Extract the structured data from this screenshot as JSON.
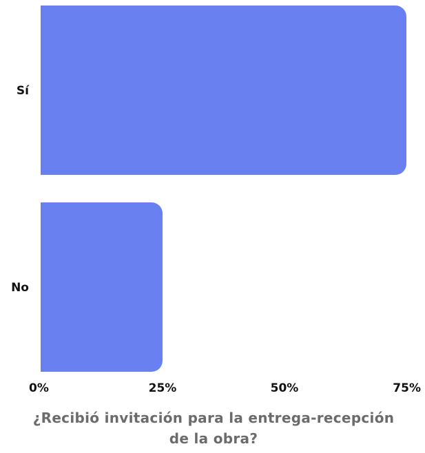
{
  "chart_data": {
    "type": "bar",
    "orientation": "horizontal",
    "categories": [
      "Sí",
      "No"
    ],
    "values": [
      75,
      25
    ],
    "xlim": [
      0,
      75
    ],
    "xticks": [
      "0%",
      "25%",
      "50%",
      "75%"
    ],
    "xtick_values": [
      0,
      25,
      50,
      75
    ],
    "title": "¿Recibió invitación para la entrega-recepción de la obra?",
    "grid": false,
    "legend": "none",
    "bar_color": "#6981f0"
  }
}
